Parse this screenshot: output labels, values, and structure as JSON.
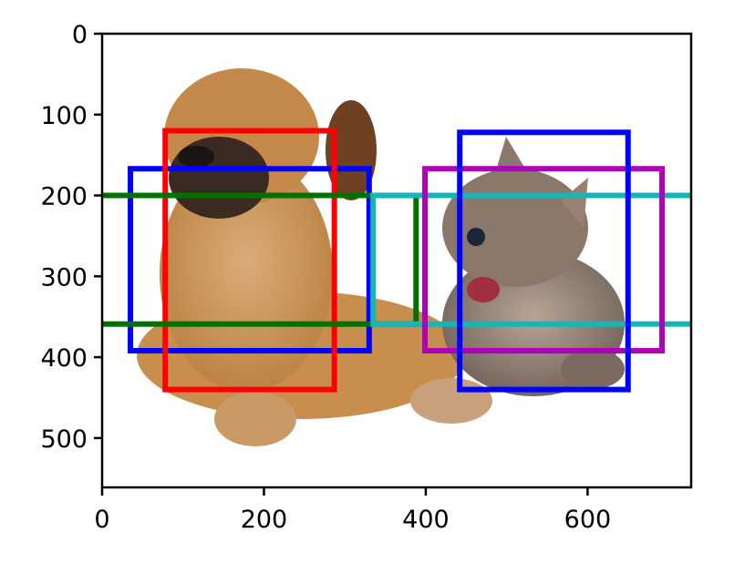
{
  "chart_data": {
    "type": "image-with-bounding-boxes",
    "title": "",
    "xlabel": "",
    "ylabel": "",
    "xlim": [
      0,
      728
    ],
    "ylim": [
      561,
      0
    ],
    "grid": false,
    "image_content": "dog and cat photo",
    "x_ticks": [
      "0",
      "200",
      "400",
      "600"
    ],
    "x_tick_values": [
      0,
      200,
      400,
      600
    ],
    "y_ticks": [
      "0",
      "100",
      "200",
      "300",
      "400",
      "500"
    ],
    "y_tick_values": [
      0,
      100,
      200,
      300,
      400,
      500
    ],
    "boxes": [
      {
        "color": "#0000ff",
        "xmin": 35,
        "ymin": 167,
        "xmax": 330,
        "ymax": 392
      },
      {
        "color": "#ff0000",
        "xmin": 78,
        "ymin": 120,
        "xmax": 287,
        "ymax": 440
      },
      {
        "color": "#007000",
        "xmin": -23,
        "ymin": 200,
        "xmax": 388,
        "ymax": 359
      },
      {
        "color": "#17b5b5",
        "xmin": 335,
        "ymin": 200,
        "xmax": 757,
        "ymax": 359
      },
      {
        "color": "#b000b8",
        "xmin": 399,
        "ymin": 167,
        "xmax": 692,
        "ymax": 392
      },
      {
        "color": "#0000ff",
        "xmin": 442,
        "ymin": 122,
        "xmax": 650,
        "ymax": 440
      }
    ]
  }
}
